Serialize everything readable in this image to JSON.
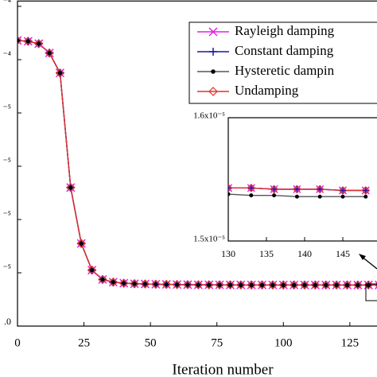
{
  "chart_data": [
    {
      "type": "line",
      "xlabel": "Iteration number",
      "x": [
        0,
        4,
        8,
        12,
        16,
        20,
        24,
        28,
        32,
        36,
        40,
        44,
        48,
        52,
        56,
        60,
        64,
        68,
        72,
        76,
        80,
        84,
        88,
        92,
        96,
        100,
        104,
        108,
        112,
        116,
        120,
        124,
        128,
        132,
        136
      ],
      "xlim": [
        0,
        140
      ],
      "xticks": [
        0,
        25,
        50,
        75,
        100,
        125
      ],
      "ylim": [
        0,
        0.000122
      ],
      "yticks": [
        {
          "value": 0,
          "label": ".0"
        },
        {
          "value": 2e-05,
          "label": "⁻⁵"
        },
        {
          "value": 4e-05,
          "label": "⁻⁵"
        },
        {
          "value": 6e-05,
          "label": "⁻⁵"
        },
        {
          "value": 8e-05,
          "label": "⁻⁵"
        },
        {
          "value": 0.0001,
          "label": "⁻⁴"
        },
        {
          "value": 0.00012,
          "label": "⁻⁴"
        }
      ],
      "legend": "upper right",
      "series": [
        {
          "name": "Rayleigh damping",
          "color": "#e020e0",
          "marker": "x",
          "values": [
            0.0001072,
            0.0001069,
            0.000106,
            0.0001025,
            9.5e-05,
            5.2e-05,
            3.1e-05,
            2.1e-05,
            1.75e-05,
            1.65e-05,
            1.61e-05,
            1.59e-05,
            1.58e-05,
            1.57e-05,
            1.565e-05,
            1.56e-05,
            1.555e-05,
            1.55e-05,
            1.55e-05,
            1.548e-05,
            1.547e-05,
            1.546e-05,
            1.545e-05,
            1.545e-05,
            1.544e-05,
            1.544e-05,
            1.544e-05,
            1.543e-05,
            1.543e-05,
            1.543e-05,
            1.543e-05,
            1.543e-05,
            1.543e-05,
            1.543e-05,
            1.543e-05
          ]
        },
        {
          "name": "Constant damping",
          "color": "#1a1aa0",
          "marker": "+",
          "values": [
            0.0001072,
            0.0001069,
            0.000106,
            0.0001025,
            9.5e-05,
            5.2e-05,
            3.1e-05,
            2.1e-05,
            1.75e-05,
            1.65e-05,
            1.61e-05,
            1.59e-05,
            1.58e-05,
            1.57e-05,
            1.565e-05,
            1.56e-05,
            1.555e-05,
            1.55e-05,
            1.55e-05,
            1.548e-05,
            1.547e-05,
            1.546e-05,
            1.545e-05,
            1.545e-05,
            1.544e-05,
            1.544e-05,
            1.544e-05,
            1.543e-05,
            1.543e-05,
            1.543e-05,
            1.543e-05,
            1.543e-05,
            1.543e-05,
            1.543e-05,
            1.543e-05
          ]
        },
        {
          "name": "Hysteretic dampin",
          "color": "#555555",
          "marker": "dot",
          "values": [
            0.0001072,
            0.0001069,
            0.000106,
            0.0001025,
            9.5e-05,
            5.2e-05,
            3.1e-05,
            2.1e-05,
            1.75e-05,
            1.65e-05,
            1.61e-05,
            1.59e-05,
            1.58e-05,
            1.57e-05,
            1.562e-05,
            1.555e-05,
            1.55e-05,
            1.546e-05,
            1.544e-05,
            1.542e-05,
            1.541e-05,
            1.54e-05,
            1.54e-05,
            1.539e-05,
            1.539e-05,
            1.539e-05,
            1.538e-05,
            1.538e-05,
            1.538e-05,
            1.538e-05,
            1.538e-05,
            1.537e-05,
            1.537e-05,
            1.537e-05,
            1.537e-05
          ]
        },
        {
          "name": "Undamping",
          "color": "#e03030",
          "marker": "diamond",
          "values": [
            0.0001072,
            0.0001069,
            0.000106,
            0.0001025,
            9.5e-05,
            5.2e-05,
            3.1e-05,
            2.1e-05,
            1.75e-05,
            1.65e-05,
            1.61e-05,
            1.59e-05,
            1.58e-05,
            1.57e-05,
            1.565e-05,
            1.56e-05,
            1.555e-05,
            1.55e-05,
            1.55e-05,
            1.548e-05,
            1.547e-05,
            1.546e-05,
            1.545e-05,
            1.545e-05,
            1.544e-05,
            1.544e-05,
            1.544e-05,
            1.543e-05,
            1.543e-05,
            1.543e-05,
            1.543e-05,
            1.543e-05,
            1.543e-05,
            1.543e-05,
            1.543e-05
          ]
        }
      ]
    },
    {
      "type": "line",
      "x": [
        130,
        133,
        136,
        139,
        142,
        145,
        148
      ],
      "xlim": [
        130,
        150
      ],
      "xticks": [
        130,
        135,
        140,
        145
      ],
      "ylim": [
        1.5e-05,
        1.6e-05
      ],
      "yticks": [
        {
          "value": 1.5e-05,
          "label": "1.5x10⁻⁵"
        },
        {
          "value": 1.6e-05,
          "label": "1.6x10⁻⁵"
        }
      ],
      "series": [
        {
          "color": "#e020e0",
          "marker": "x",
          "values": [
            1.543e-05,
            1.543e-05,
            1.542e-05,
            1.542e-05,
            1.542e-05,
            1.541e-05,
            1.541e-05
          ]
        },
        {
          "color": "#1a1aa0",
          "marker": "+",
          "values": [
            1.543e-05,
            1.543e-05,
            1.542e-05,
            1.542e-05,
            1.542e-05,
            1.541e-05,
            1.541e-05
          ]
        },
        {
          "color": "#555555",
          "marker": "dot",
          "values": [
            1.538e-05,
            1.537e-05,
            1.537e-05,
            1.536e-05,
            1.536e-05,
            1.536e-05,
            1.536e-05
          ]
        },
        {
          "color": "#e03030",
          "marker": "diamond",
          "values": [
            1.543e-05,
            1.543e-05,
            1.542e-05,
            1.542e-05,
            1.542e-05,
            1.541e-05,
            1.541e-05
          ]
        }
      ]
    }
  ]
}
